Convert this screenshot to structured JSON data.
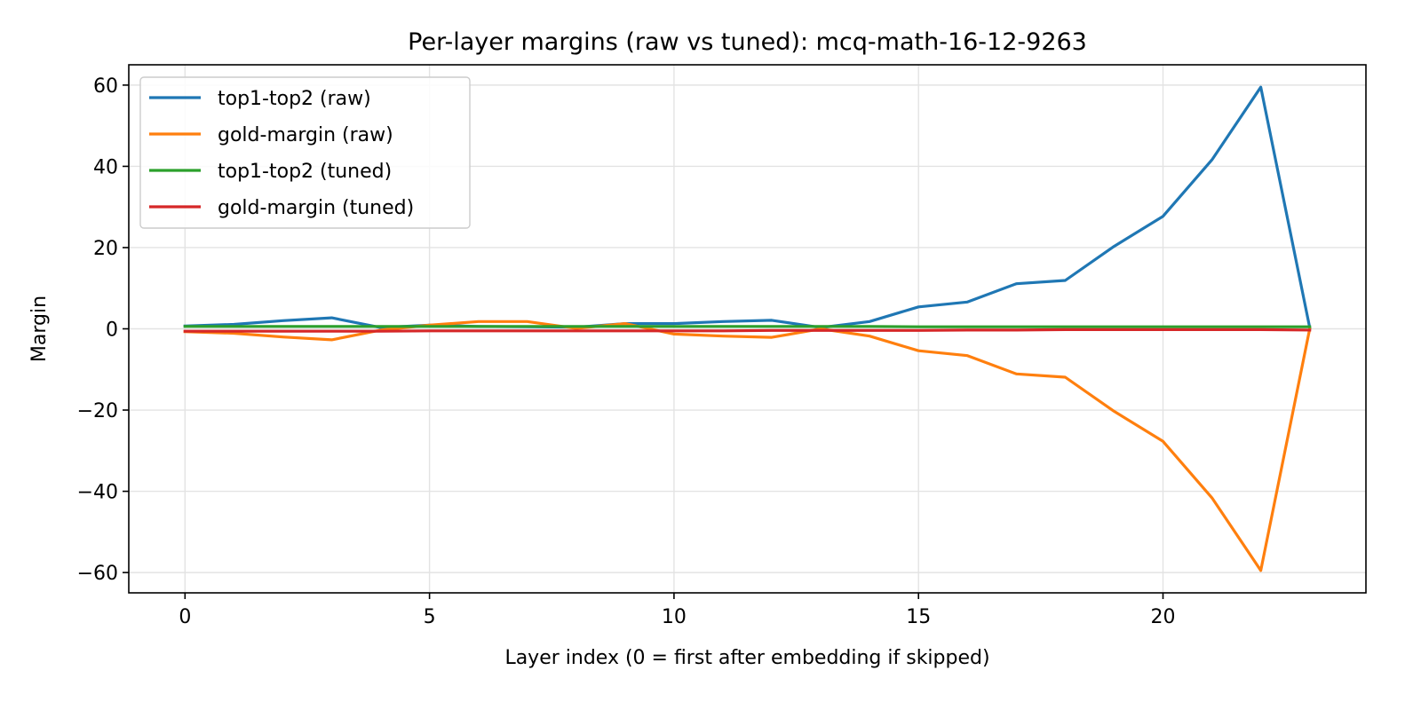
{
  "chart_data": {
    "type": "line",
    "title": "Per-layer margins (raw vs tuned): mcq-math-16-12-9263",
    "xlabel": "Layer index (0 = first after embedding if skipped)",
    "ylabel": "Margin",
    "xlim": [
      -1.15,
      24.15
    ],
    "ylim": [
      -65,
      65
    ],
    "xticks": [
      0,
      5,
      10,
      15,
      20
    ],
    "yticks": [
      -60,
      -40,
      -20,
      0,
      20,
      40,
      60
    ],
    "ytick_labels": [
      "−60",
      "−40",
      "−20",
      "0",
      "20",
      "40",
      "60"
    ],
    "grid": true,
    "legend_position": "top-left",
    "x": [
      0,
      1,
      2,
      3,
      4,
      5,
      6,
      7,
      8,
      9,
      10,
      11,
      12,
      13,
      14,
      15,
      16,
      17,
      18,
      19,
      20,
      21,
      22,
      23
    ],
    "series": [
      {
        "name": "top1-top2 (raw)",
        "color": "#1f77b4",
        "values": [
          0.7,
          1.1,
          2.0,
          2.7,
          0.3,
          0.9,
          0.6,
          0.5,
          0.4,
          1.3,
          1.3,
          1.8,
          2.1,
          0.3,
          1.8,
          5.4,
          6.6,
          11.1,
          11.9,
          20.3,
          27.7,
          41.6,
          59.5,
          0.3
        ]
      },
      {
        "name": "gold-margin (raw)",
        "color": "#ff7f0e",
        "values": [
          -0.7,
          -1.1,
          -2.0,
          -2.7,
          -0.3,
          0.9,
          1.8,
          1.8,
          0.1,
          1.3,
          -1.3,
          -1.8,
          -2.1,
          0.0,
          -1.8,
          -5.4,
          -6.6,
          -11.1,
          -11.9,
          -20.3,
          -27.7,
          -41.6,
          -59.5,
          0.0
        ]
      },
      {
        "name": "top1-top2 (tuned)",
        "color": "#2ca02c",
        "values": [
          0.6,
          0.6,
          0.6,
          0.6,
          0.6,
          0.6,
          0.6,
          0.6,
          0.6,
          0.6,
          0.6,
          0.6,
          0.6,
          0.6,
          0.6,
          0.5,
          0.5,
          0.5,
          0.5,
          0.5,
          0.5,
          0.5,
          0.5,
          0.5
        ]
      },
      {
        "name": "gold-margin (tuned)",
        "color": "#d62728",
        "values": [
          -0.6,
          -0.6,
          -0.6,
          -0.6,
          -0.6,
          -0.5,
          -0.5,
          -0.5,
          -0.5,
          -0.5,
          -0.5,
          -0.5,
          -0.4,
          -0.4,
          -0.4,
          -0.4,
          -0.3,
          -0.3,
          -0.2,
          -0.2,
          -0.2,
          -0.2,
          -0.2,
          -0.3
        ]
      }
    ]
  }
}
